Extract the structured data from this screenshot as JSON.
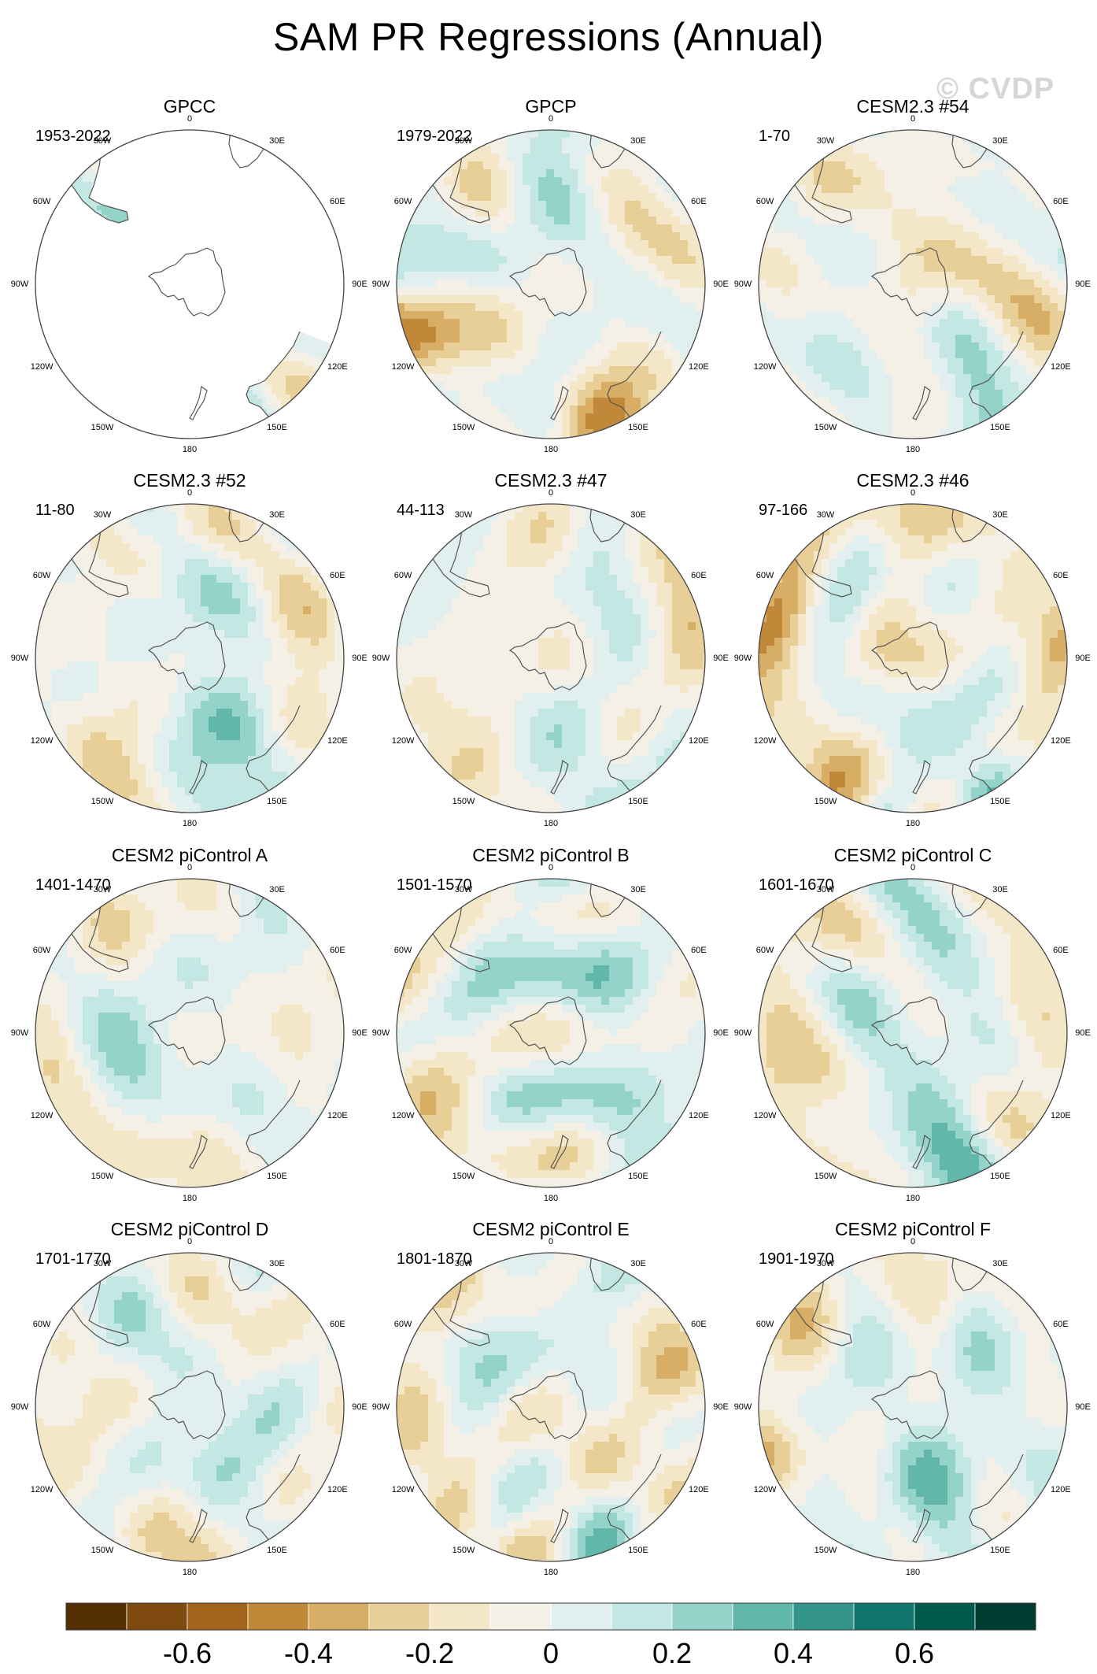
{
  "title": "SAM PR Regressions (Annual)",
  "watermark": "© CVDP",
  "colors": {
    "land_outline": "#555555",
    "frame": "#444444",
    "levels": [
      "#543005",
      "#7e4a0f",
      "#a2641b",
      "#c18839",
      "#d8ae67",
      "#e8cf98",
      "#f4e7c7",
      "#f5f0e6",
      "#e1efef",
      "#c3e7e3",
      "#93d3c9",
      "#60b7aa",
      "#33958a",
      "#0f766c",
      "#00594d",
      "#003c30"
    ]
  },
  "longitude_labels": [
    "0",
    "30E",
    "60E",
    "90E",
    "120E",
    "150E",
    "180",
    "150W",
    "120W",
    "90W",
    "60W",
    "30W"
  ],
  "colorbar": {
    "tick_labels": [
      "-0.6",
      "-0.4",
      "-0.2",
      "0",
      "0.2",
      "0.4",
      "0.6"
    ]
  },
  "panels": [
    {
      "title": "GPCC",
      "period": "1953-2022",
      "seed": 3,
      "mode": "land",
      "amp": 0.5
    },
    {
      "title": "GPCP",
      "period": "1979-2022",
      "seed": 7,
      "mode": "full",
      "amp": 0.55
    },
    {
      "title": "CESM2.3 #54",
      "period": "1-70",
      "seed": 11,
      "mode": "full",
      "amp": 0.5
    },
    {
      "title": "CESM2.3 #52",
      "period": "11-80",
      "seed": 17,
      "mode": "full",
      "amp": 0.38
    },
    {
      "title": "CESM2.3 #47",
      "period": "44-113",
      "seed": 23,
      "mode": "full",
      "amp": 0.35
    },
    {
      "title": "CESM2.3 #46",
      "period": "97-166",
      "seed": 29,
      "mode": "full",
      "amp": 0.55
    },
    {
      "title": "CESM2 piControl A",
      "period": "1401-1470",
      "seed": 31,
      "mode": "full",
      "amp": 0.4
    },
    {
      "title": "CESM2 piControl B",
      "period": "1501-1570",
      "seed": 37,
      "mode": "full",
      "amp": 0.4
    },
    {
      "title": "CESM2 piControl C",
      "period": "1601-1670",
      "seed": 41,
      "mode": "full",
      "amp": 0.38
    },
    {
      "title": "CESM2 piControl D",
      "period": "1701-1770",
      "seed": 43,
      "mode": "full",
      "amp": 0.38
    },
    {
      "title": "CESM2 piControl E",
      "period": "1801-1870",
      "seed": 47,
      "mode": "full",
      "amp": 0.55
    },
    {
      "title": "CESM2 piControl F",
      "period": "1901-1970",
      "seed": 53,
      "mode": "full",
      "amp": 0.42
    }
  ]
}
